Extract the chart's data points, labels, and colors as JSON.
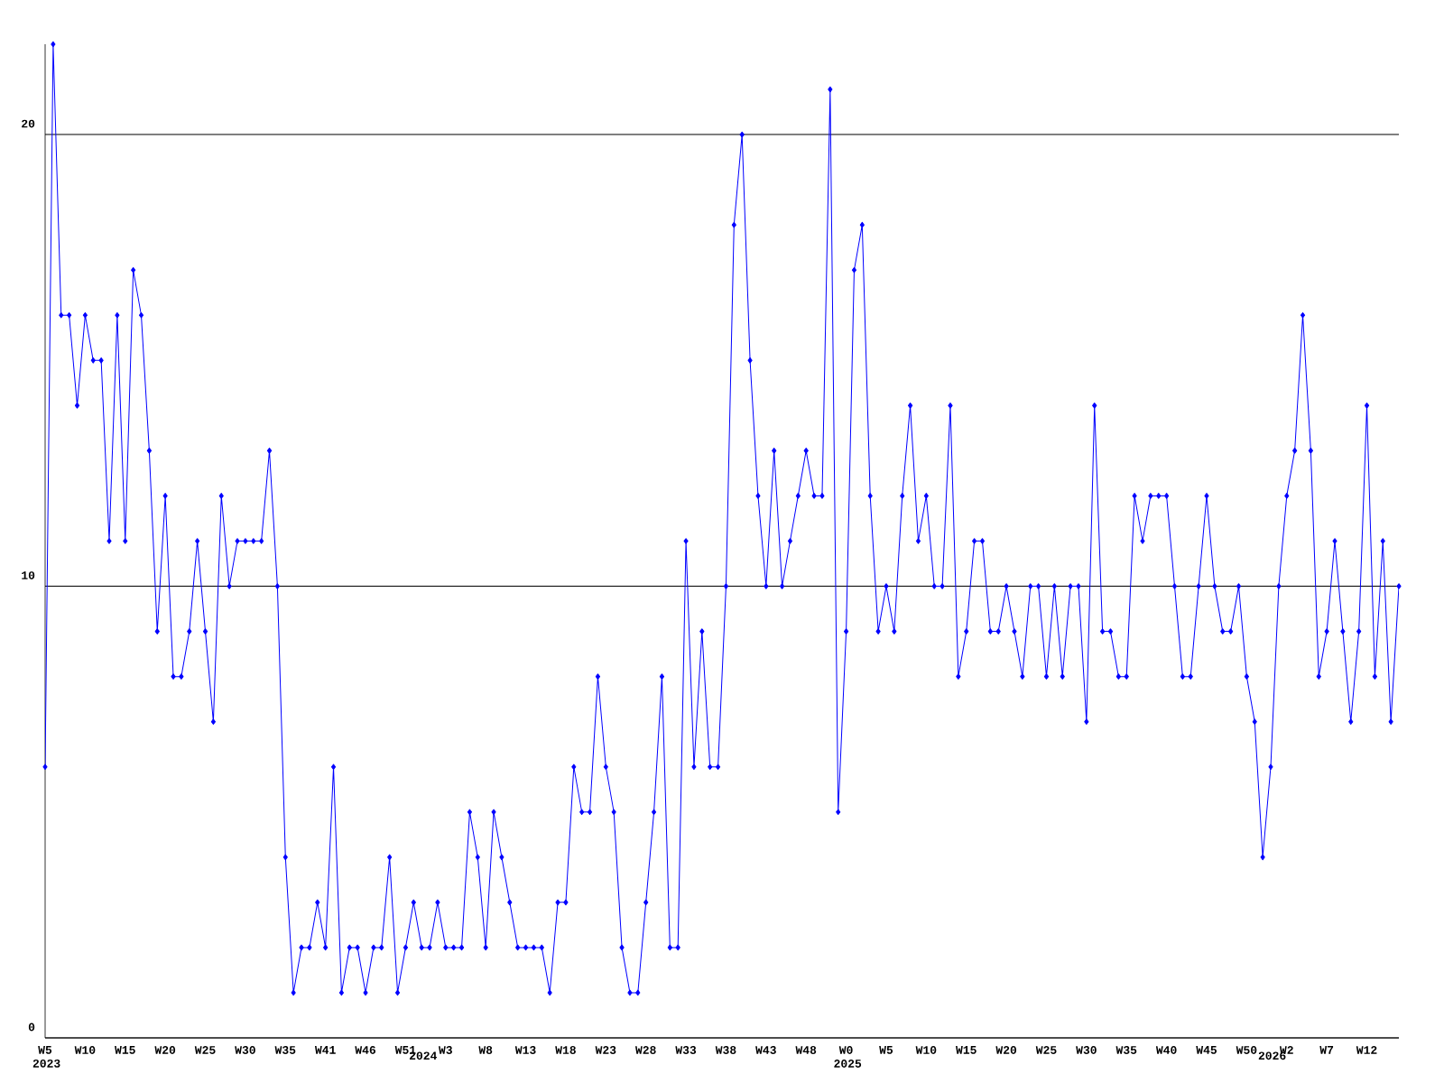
{
  "chart_data": {
    "type": "line",
    "color": "#0000ff",
    "marker": "diamond",
    "line_style": "solid",
    "grid": "y",
    "categories": [
      "W5 2023",
      null,
      null,
      null,
      null,
      "W10",
      null,
      null,
      null,
      null,
      "W15",
      null,
      null,
      null,
      null,
      "W20",
      null,
      null,
      null,
      null,
      "W25",
      null,
      null,
      null,
      null,
      "W30",
      null,
      null,
      null,
      null,
      "W35",
      null,
      null,
      null,
      null,
      "W41",
      null,
      null,
      null,
      null,
      "W46",
      null,
      null,
      null,
      null,
      "W51",
      null,
      "2024",
      null,
      null,
      "W3",
      null,
      null,
      null,
      null,
      "W8",
      null,
      null,
      null,
      null,
      "W13",
      null,
      null,
      null,
      null,
      "W18",
      null,
      null,
      null,
      null,
      "W23",
      null,
      null,
      null,
      null,
      "W28",
      null,
      null,
      null,
      null,
      "W33",
      null,
      null,
      null,
      null,
      "W38",
      null,
      null,
      null,
      null,
      "W43",
      null,
      null,
      null,
      null,
      "W48",
      null,
      null,
      null,
      null,
      "W0 2025",
      null,
      null,
      null,
      null,
      "W5",
      null,
      null,
      null,
      null,
      "W10",
      null,
      null,
      null,
      null,
      "W15",
      null,
      null,
      null,
      null,
      "W20",
      null,
      null,
      null,
      null,
      "W25",
      null,
      null,
      null,
      null,
      "W30",
      null,
      null,
      null,
      null,
      "W35",
      null,
      null,
      null,
      null,
      "W40",
      null,
      null,
      null,
      null,
      "W45",
      null,
      null,
      null,
      null,
      "W50",
      null,
      null,
      "2026",
      null,
      "W2",
      null,
      null,
      null,
      null,
      "W7",
      null,
      null,
      null,
      null,
      "W12",
      null,
      null,
      null,
      null
    ],
    "values": [
      6,
      22,
      16,
      16,
      14,
      16,
      15,
      15,
      11,
      16,
      11,
      17,
      16,
      13,
      9,
      12,
      8,
      8,
      9,
      11,
      9,
      7,
      12,
      10,
      11,
      11,
      11,
      11,
      13,
      10,
      4,
      1,
      2,
      2,
      3,
      2,
      6,
      1,
      2,
      2,
      1,
      2,
      2,
      4,
      1,
      2,
      3,
      2,
      2,
      3,
      2,
      2,
      2,
      5,
      4,
      2,
      5,
      4,
      3,
      2,
      2,
      2,
      2,
      1,
      3,
      3,
      6,
      5,
      5,
      8,
      6,
      5,
      2,
      1,
      1,
      3,
      5,
      8,
      2,
      2,
      11,
      6,
      9,
      6,
      6,
      10,
      18,
      20,
      15,
      12,
      10,
      13,
      10,
      11,
      12,
      13,
      12,
      12,
      21,
      5,
      9,
      17,
      18,
      12,
      9,
      10,
      9,
      12,
      14,
      11,
      12,
      10,
      10,
      14,
      8,
      9,
      11,
      11,
      9,
      9,
      10,
      9,
      8,
      10,
      10,
      8,
      10,
      8,
      10,
      10,
      7,
      14,
      9,
      9,
      8,
      8,
      12,
      11,
      12,
      12,
      12,
      10,
      8,
      8,
      10,
      12,
      10,
      9,
      9,
      10,
      8,
      7,
      4,
      6,
      10,
      12,
      13,
      16,
      13,
      8,
      9,
      11,
      9,
      7,
      9,
      14,
      8,
      11,
      7,
      10
    ],
    "ylim": [
      0,
      22
    ],
    "yticks": [
      0,
      10,
      20
    ]
  }
}
